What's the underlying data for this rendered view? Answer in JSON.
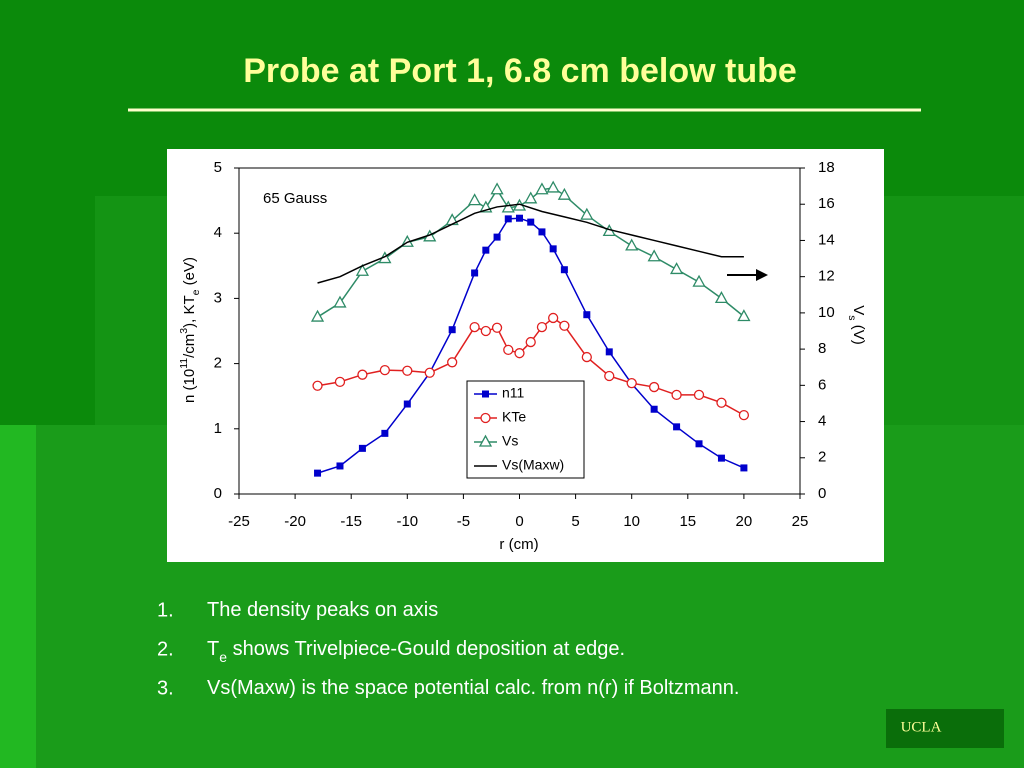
{
  "slide": {
    "title": "Probe at Port 1, 6.8 cm below tube",
    "bullets": [
      {
        "number": "1.",
        "parts": [
          "The density peaks on axis"
        ]
      },
      {
        "number": "2.",
        "parts": [
          "T",
          "e",
          " shows Trivelpiece-Gould deposition at edge."
        ]
      },
      {
        "number": "3.",
        "parts": [
          "Vs(Maxw) is the space potential calc. from n(r) if Boltzmann."
        ]
      }
    ],
    "badge": "UCLA"
  },
  "chart_data": {
    "type": "line",
    "annotation": "65 Gauss",
    "xlabel": "r (cm)",
    "ylabel": [
      "n (10",
      "11",
      "/cm",
      "3",
      "), KT",
      "e",
      " (eV)"
    ],
    "y2label": [
      "V",
      "s",
      " (V)"
    ],
    "xlim": [
      -25,
      25
    ],
    "xticks": [
      -25,
      -20,
      -15,
      -10,
      -5,
      0,
      5,
      10,
      15,
      20,
      25
    ],
    "ylim": [
      0,
      5
    ],
    "yticks": [
      0,
      1,
      2,
      3,
      4,
      5
    ],
    "y2lim": [
      0,
      18
    ],
    "y2ticks": [
      0,
      2,
      4,
      6,
      8,
      10,
      12,
      14,
      16,
      18
    ],
    "series": [
      {
        "name": "n11",
        "color": "#0000cc",
        "marker": "square",
        "axis": "y",
        "x": [
          -18,
          -16,
          -14,
          -12,
          -10,
          -8,
          -6,
          -4,
          -3,
          -2,
          -1,
          0,
          1,
          2,
          3,
          4,
          6,
          8,
          10,
          12,
          14,
          16,
          18,
          20
        ],
        "values": [
          0.32,
          0.43,
          0.7,
          0.93,
          1.38,
          1.86,
          2.52,
          3.39,
          3.74,
          3.94,
          4.22,
          4.23,
          4.17,
          4.02,
          3.76,
          3.44,
          2.75,
          2.18,
          1.69,
          1.3,
          1.03,
          0.77,
          0.55,
          0.4
        ]
      },
      {
        "name": "KTe",
        "color": "#e02020",
        "marker": "circle",
        "axis": "y",
        "x": [
          -18,
          -16,
          -14,
          -12,
          -10,
          -8,
          -6,
          -4,
          -3,
          -2,
          -1,
          0,
          1,
          2,
          3,
          4,
          6,
          8,
          10,
          12,
          14,
          16,
          18,
          20
        ],
        "values": [
          1.66,
          1.72,
          1.83,
          1.9,
          1.89,
          1.86,
          2.02,
          2.56,
          2.5,
          2.55,
          2.21,
          2.16,
          2.33,
          2.56,
          2.7,
          2.58,
          2.1,
          1.81,
          1.7,
          1.64,
          1.52,
          1.52,
          1.4,
          1.21
        ]
      },
      {
        "name": "Vs",
        "color": "#2e8b67",
        "marker": "triangle",
        "axis": "y2",
        "x": [
          -18,
          -16,
          -14,
          -12,
          -10,
          -8,
          -6,
          -4,
          -3,
          -2,
          -1,
          0,
          1,
          2,
          3,
          4,
          6,
          8,
          10,
          12,
          14,
          16,
          18,
          20
        ],
        "values": [
          9.77,
          10.55,
          12.3,
          13,
          13.9,
          14.2,
          15.1,
          16.2,
          15.8,
          16.8,
          15.8,
          15.9,
          16.3,
          16.8,
          16.9,
          16.5,
          15.4,
          14.5,
          13.7,
          13.1,
          12.4,
          11.7,
          10.8,
          9.8
        ]
      },
      {
        "name": "Vs(Maxw)",
        "color": "#000000",
        "marker": "none",
        "axis": "y2",
        "x": [
          -18,
          -16,
          -14,
          -12,
          -10,
          -8,
          -6,
          -4,
          -2,
          0,
          2,
          4,
          6,
          8,
          10,
          12,
          14,
          16,
          18,
          20
        ],
        "values": [
          11.65,
          12,
          12.6,
          13.1,
          13.9,
          14.3,
          14.9,
          15.5,
          15.85,
          16,
          15.6,
          15.3,
          15,
          14.6,
          14.3,
          14,
          13.7,
          13.4,
          13.1,
          13.1
        ]
      }
    ]
  }
}
